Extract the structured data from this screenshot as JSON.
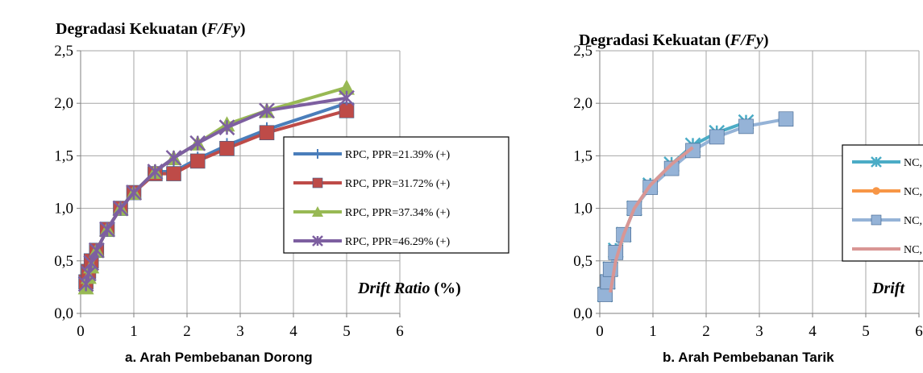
{
  "chart_data": [
    {
      "type": "line",
      "title": "Degradasi Kekuatan (F/Fy)",
      "title_parts": [
        "Degradasi Kekuatan (",
        "F/Fy",
        ")"
      ],
      "xlabel": "Drift Ratio (%)",
      "xlabel_parts": [
        "Drift Ratio",
        " (%)"
      ],
      "caption": "a.   Arah Pembebanan Dorong",
      "xlim": [
        0,
        6
      ],
      "ylim": [
        0,
        2.5
      ],
      "x_ticks": [
        "0",
        "1",
        "2",
        "3",
        "4",
        "5",
        "6"
      ],
      "y_ticks": [
        "0,0",
        "0,5",
        "1,0",
        "1,5",
        "2,0",
        "2,5"
      ],
      "grid": true,
      "legend_position": "right",
      "series": [
        {
          "name": "RPC, PPR=21.39% (+)",
          "color": "#4a7ebb",
          "marker": "plus",
          "x": [
            0.1,
            0.15,
            0.2,
            0.3,
            0.5,
            0.75,
            1.0,
            1.4,
            1.75,
            2.2,
            2.75,
            3.5,
            5.0
          ],
          "y": [
            0.3,
            0.4,
            0.5,
            0.6,
            0.8,
            1.0,
            1.15,
            1.35,
            1.35,
            1.47,
            1.6,
            1.75,
            2.0
          ]
        },
        {
          "name": "RPC, PPR=31.72% (+)",
          "color": "#be4b48",
          "marker": "square",
          "x": [
            0.1,
            0.15,
            0.2,
            0.3,
            0.5,
            0.75,
            1.0,
            1.4,
            1.75,
            2.2,
            2.75,
            3.5,
            5.0
          ],
          "y": [
            0.3,
            0.4,
            0.5,
            0.6,
            0.8,
            1.0,
            1.15,
            1.33,
            1.33,
            1.45,
            1.57,
            1.72,
            1.93
          ]
        },
        {
          "name": "RPC, PPR=37.34% (+)",
          "color": "#98b954",
          "marker": "triangle",
          "x": [
            0.1,
            0.15,
            0.2,
            0.3,
            0.5,
            0.75,
            1.0,
            1.4,
            1.75,
            2.2,
            2.75,
            3.5,
            5.0
          ],
          "y": [
            0.25,
            0.35,
            0.45,
            0.6,
            0.8,
            1.0,
            1.15,
            1.35,
            1.48,
            1.62,
            1.8,
            1.93,
            2.15
          ]
        },
        {
          "name": "RPC, PPR=46.29% (+)",
          "color": "#7d5fa0",
          "marker": "x",
          "x": [
            0.1,
            0.15,
            0.2,
            0.3,
            0.5,
            0.75,
            1.0,
            1.4,
            1.75,
            2.2,
            2.75,
            3.5,
            5.0
          ],
          "y": [
            0.28,
            0.38,
            0.48,
            0.6,
            0.8,
            1.0,
            1.15,
            1.35,
            1.48,
            1.62,
            1.77,
            1.93,
            2.05
          ]
        }
      ]
    },
    {
      "type": "line",
      "title": "Degradasi Kekuatan (F/Fy)",
      "title_parts": [
        "Degradasi Kekuatan (",
        "F/Fy",
        ")"
      ],
      "xlabel": "Drift",
      "caption": "b.   Arah Pembebanan Tarik",
      "xlim": [
        0,
        6
      ],
      "ylim": [
        0,
        2.5
      ],
      "x_ticks": [
        "0",
        "1",
        "2",
        "3",
        "4",
        "5",
        "6"
      ],
      "y_ticks": [
        "0,0",
        "0,5",
        "1,0",
        "1,5",
        "2,0",
        "2,5"
      ],
      "grid": true,
      "legend_position": "right",
      "series": [
        {
          "name": "NC,",
          "color": "#4bacc6",
          "marker": "x",
          "x": [
            0.1,
            0.15,
            0.2,
            0.3,
            0.45,
            0.65,
            0.95,
            1.35,
            1.75,
            2.2,
            2.75
          ],
          "y": [
            0.18,
            0.3,
            0.42,
            0.6,
            0.75,
            1.0,
            1.22,
            1.42,
            1.6,
            1.72,
            1.82
          ]
        },
        {
          "name": "NC,",
          "color": "#f79646",
          "marker": "circle",
          "x": [
            0.1,
            0.15,
            0.2,
            0.3,
            0.45,
            0.65,
            0.95,
            1.35,
            1.75
          ],
          "y": [
            0.2,
            0.3,
            0.42,
            0.58,
            0.75,
            1.0,
            1.2,
            1.4,
            1.55
          ]
        },
        {
          "name": "NC,",
          "color": "#95b3d7",
          "marker": "square",
          "x": [
            0.1,
            0.15,
            0.2,
            0.3,
            0.45,
            0.65,
            0.95,
            1.35,
            1.75,
            2.2,
            2.75,
            3.5
          ],
          "y": [
            0.18,
            0.3,
            0.42,
            0.58,
            0.75,
            1.0,
            1.2,
            1.38,
            1.55,
            1.68,
            1.78,
            1.85
          ]
        },
        {
          "name": "NC,",
          "color": "#d99694",
          "marker": "none",
          "x": [
            0.2,
            0.3,
            0.45,
            0.65,
            0.95,
            1.35,
            1.75
          ],
          "y": [
            0.2,
            0.5,
            0.75,
            1.0,
            1.22,
            1.42,
            1.58
          ]
        }
      ]
    }
  ]
}
